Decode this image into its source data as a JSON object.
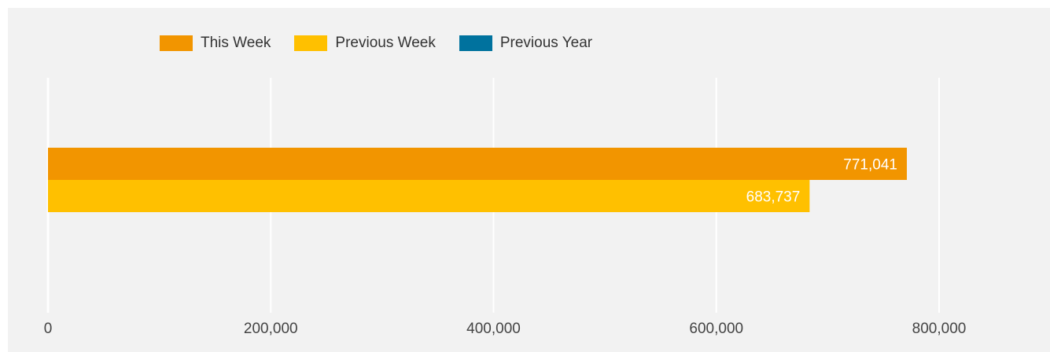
{
  "chart_data": {
    "type": "bar",
    "orientation": "horizontal",
    "categories": [
      ""
    ],
    "series": [
      {
        "name": "This Week",
        "values": [
          771041
        ],
        "label": "771,041",
        "color": "#f29500"
      },
      {
        "name": "Previous Week",
        "values": [
          683737
        ],
        "label": "683,737",
        "color": "#ffc000"
      },
      {
        "name": "Previous Year",
        "values": [
          null
        ],
        "label": "",
        "color": "#00729e"
      }
    ],
    "xlim": [
      0,
      800000
    ],
    "xticks": [
      0,
      200000,
      400000,
      600000,
      800000
    ],
    "xtick_labels": [
      "0",
      "200,000",
      "400,000",
      "600,000",
      "800,000"
    ],
    "grid": true,
    "legend_position": "top-left"
  }
}
